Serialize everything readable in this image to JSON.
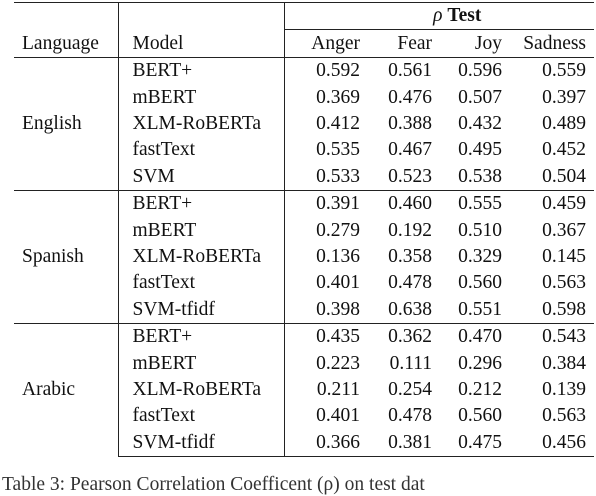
{
  "table": {
    "super_header": {
      "rho": "ρ",
      "test": "Test"
    },
    "columns": [
      "Language",
      "Model",
      "Anger",
      "Fear",
      "Joy",
      "Sadness"
    ],
    "groups": [
      {
        "language": "English",
        "rows": [
          {
            "model": "BERT+",
            "anger": "0.592",
            "fear": "0.561",
            "joy": "0.596",
            "sadness": "0.559"
          },
          {
            "model": "mBERT",
            "anger": "0.369",
            "fear": "0.476",
            "joy": "0.507",
            "sadness": "0.397"
          },
          {
            "model": "XLM-RoBERTa",
            "anger": "0.412",
            "fear": "0.388",
            "joy": "0.432",
            "sadness": "0.489"
          },
          {
            "model": "fastText",
            "anger": "0.535",
            "fear": "0.467",
            "joy": "0.495",
            "sadness": "0.452"
          },
          {
            "model": "SVM",
            "anger": "0.533",
            "fear": "0.523",
            "joy": "0.538",
            "sadness": "0.504"
          }
        ]
      },
      {
        "language": "Spanish",
        "rows": [
          {
            "model": "BERT+",
            "anger": "0.391",
            "fear": "0.460",
            "joy": "0.555",
            "sadness": "0.459"
          },
          {
            "model": "mBERT",
            "anger": "0.279",
            "fear": "0.192",
            "joy": "0.510",
            "sadness": "0.367"
          },
          {
            "model": "XLM-RoBERTa",
            "anger": "0.136",
            "fear": "0.358",
            "joy": "0.329",
            "sadness": "0.145"
          },
          {
            "model": "fastText",
            "anger": "0.401",
            "fear": "0.478",
            "joy": "0.560",
            "sadness": "0.563"
          },
          {
            "model": "SVM-tfidf",
            "anger": "0.398",
            "fear": "0.638",
            "joy": "0.551",
            "sadness": "0.598"
          }
        ]
      },
      {
        "language": "Arabic",
        "rows": [
          {
            "model": "BERT+",
            "anger": "0.435",
            "fear": "0.362",
            "joy": "0.470",
            "sadness": "0.543"
          },
          {
            "model": "mBERT",
            "anger": "0.223",
            "fear": "0.111",
            "joy": "0.296",
            "sadness": "0.384"
          },
          {
            "model": "XLM-RoBERTa",
            "anger": "0.211",
            "fear": "0.254",
            "joy": "0.212",
            "sadness": "0.139"
          },
          {
            "model": "fastText",
            "anger": "0.401",
            "fear": "0.478",
            "joy": "0.560",
            "sadness": "0.563"
          },
          {
            "model": "SVM-tfidf",
            "anger": "0.366",
            "fear": "0.381",
            "joy": "0.475",
            "sadness": "0.456"
          }
        ]
      }
    ]
  },
  "caption": {
    "text": "Table 3: Pearson Correlation Coefficent (ρ) on test dat"
  }
}
